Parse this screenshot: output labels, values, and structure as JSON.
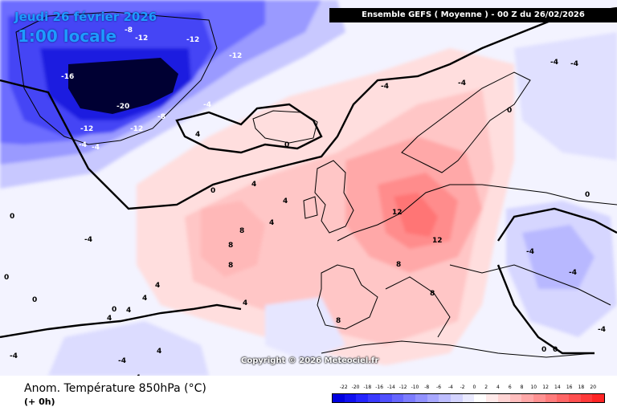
{
  "header": {
    "date": "Jeudi 26 février 2026",
    "time": "1:00 locale",
    "model_run": "Ensemble GEFS  ( Moyenne )  -  00 Z du 26/02/2026"
  },
  "footer": {
    "parameter": "Anom. Température 850hPa (°C)",
    "lead_time": "(+ 0h)",
    "copyright": "Copyright © 2026 Meteociel.fr"
  },
  "legend": {
    "ticks": [
      "-22",
      "-20",
      "-18",
      "-16",
      "-14",
      "-12",
      "-10",
      "-8",
      "-6",
      "-4",
      "-2",
      "0",
      "2",
      "4",
      "6",
      "8",
      "10",
      "12",
      "14",
      "16",
      "18",
      "20"
    ],
    "colors": [
      "#0000e0",
      "#1010f0",
      "#2424ff",
      "#3a3aff",
      "#5050ff",
      "#6666ff",
      "#7c7cff",
      "#9292ff",
      "#a8a8ff",
      "#bebeff",
      "#d4d4ff",
      "#eaeaff",
      "#ffffff",
      "#ffeaea",
      "#ffd4d4",
      "#ffbebe",
      "#ffa8a8",
      "#ff9292",
      "#ff7c7c",
      "#ff6666",
      "#ff5050",
      "#ff3a3a",
      "#ff2424"
    ]
  },
  "map_labels": [
    {
      "text": "-8"
    },
    {
      "text": "-12"
    },
    {
      "text": "-12"
    },
    {
      "text": "-12"
    },
    {
      "text": "-16"
    },
    {
      "text": "-20"
    },
    {
      "text": "-4"
    },
    {
      "text": "-8"
    },
    {
      "text": "-12"
    },
    {
      "text": "-12"
    },
    {
      "text": "-4"
    },
    {
      "text": "-4"
    },
    {
      "text": "4"
    },
    {
      "text": "0"
    },
    {
      "text": "-4"
    },
    {
      "text": "-4"
    },
    {
      "text": "-4"
    },
    {
      "text": "-4"
    },
    {
      "text": "0"
    },
    {
      "text": "4"
    },
    {
      "text": "4"
    },
    {
      "text": "0"
    },
    {
      "text": "4"
    },
    {
      "text": "8"
    },
    {
      "text": "8"
    },
    {
      "text": "8"
    },
    {
      "text": "12"
    },
    {
      "text": "12"
    },
    {
      "text": "8"
    },
    {
      "text": "8"
    },
    {
      "text": "4"
    },
    {
      "text": "4"
    },
    {
      "text": "4"
    },
    {
      "text": "0"
    },
    {
      "text": "4"
    },
    {
      "text": "4"
    },
    {
      "text": "-4"
    },
    {
      "text": "-4"
    },
    {
      "text": "-4"
    },
    {
      "text": "-4"
    },
    {
      "text": "0"
    },
    {
      "text": "0"
    },
    {
      "text": "0"
    },
    {
      "text": "0"
    },
    {
      "text": "-4"
    },
    {
      "text": "-4"
    },
    {
      "text": "0"
    },
    {
      "text": "4"
    },
    {
      "text": "8"
    },
    {
      "text": "-4"
    },
    {
      "text": "0"
    }
  ]
}
